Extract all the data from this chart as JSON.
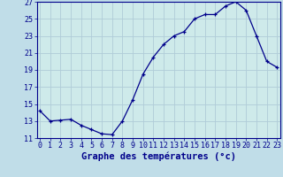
{
  "x": [
    0,
    1,
    2,
    3,
    4,
    5,
    6,
    7,
    8,
    9,
    10,
    11,
    12,
    13,
    14,
    15,
    16,
    17,
    18,
    19,
    20,
    21,
    22,
    23
  ],
  "y": [
    14.2,
    13.0,
    13.1,
    13.2,
    12.5,
    12.0,
    11.5,
    11.4,
    13.0,
    15.5,
    18.5,
    20.5,
    22.0,
    23.0,
    23.5,
    25.0,
    25.5,
    25.5,
    26.5,
    27.0,
    26.0,
    23.0,
    20.0,
    19.3
  ],
  "xlabel": "Graphe des températures (°c)",
  "ylim": [
    11,
    27
  ],
  "yticks": [
    11,
    13,
    15,
    17,
    19,
    21,
    23,
    25,
    27
  ],
  "xtick_labels": [
    "0",
    "1",
    "2",
    "3",
    "4",
    "5",
    "6",
    "7",
    "8",
    "9",
    "10",
    "11",
    "12",
    "13",
    "14",
    "15",
    "16",
    "17",
    "18",
    "19",
    "20",
    "21",
    "22",
    "23"
  ],
  "line_color": "#00008b",
  "marker_color": "#00008b",
  "bg_plot": "#ceeaea",
  "bg_fig": "#c0dde8",
  "grid_color": "#b0ccd8",
  "xlabel_fontsize": 7.5,
  "tick_fontsize": 6.0
}
